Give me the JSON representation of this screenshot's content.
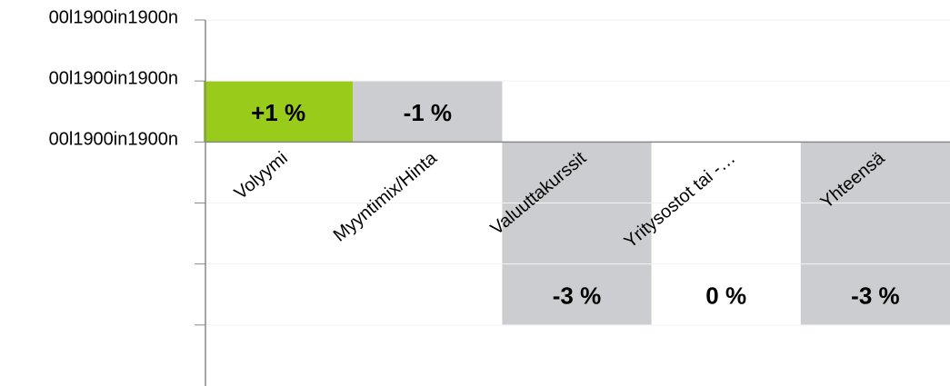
{
  "chart_data": {
    "type": "waterfall",
    "categories": [
      "Volyymi",
      "Myyntimix/Hinta",
      "Valuuttakurssit",
      "Yritysostot tai -…",
      "Yhteensä"
    ],
    "values": [
      1,
      -1,
      -3,
      0,
      -3
    ],
    "value_labels": [
      "+1 %",
      "-1 %",
      "-3 %",
      "0 %",
      "-3 %"
    ],
    "is_total": [
      false,
      false,
      false,
      false,
      true
    ],
    "colors": [
      "#99cc1a",
      "#cccdd0",
      "#cccdd0",
      "#ffffff",
      "#cccdd0"
    ],
    "ylim": [
      -4,
      2
    ],
    "yticks": [
      {
        "value": 2,
        "label": "00l1900in1900n"
      },
      {
        "value": 1,
        "label": "00l1900in1900n"
      },
      {
        "value": 0,
        "label": "00l1900in1900n"
      },
      {
        "value": -1,
        "label": null
      },
      {
        "value": -2,
        "label": null
      },
      {
        "value": -3,
        "label": null
      }
    ]
  }
}
